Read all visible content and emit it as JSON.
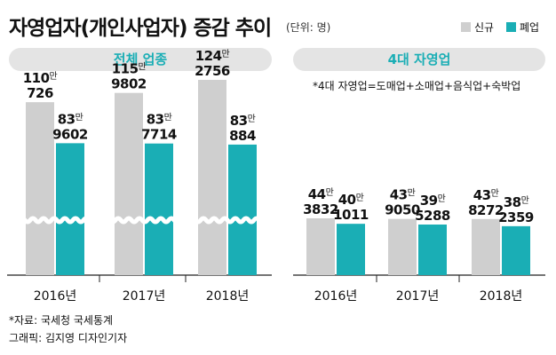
{
  "title": "자영업자(개인사업자) 증감 추이",
  "unit": "(단위: 명)",
  "legend": [
    {
      "name": "신규",
      "color": "#cfcfcf"
    },
    {
      "name": "폐업",
      "color": "#1aaeb5"
    }
  ],
  "panels": [
    {
      "header": "전체 업종"
    },
    {
      "header": "4대 자영업",
      "note": "*4대 자영업=도매업+소매업+음식업+숙박업"
    }
  ],
  "chart_data": [
    {
      "type": "bar",
      "title": "전체 업종",
      "categories": [
        "2016년",
        "2017년",
        "2018년"
      ],
      "series": [
        {
          "name": "신규",
          "values": [
            1100726,
            1159802,
            1242756
          ],
          "labels_top": [
            "110만",
            "115만",
            "124만"
          ],
          "labels_bottom": [
            "726",
            "9802",
            "2756"
          ]
        },
        {
          "name": "폐업",
          "values": [
            839602,
            837714,
            830884
          ],
          "labels_top": [
            "83만",
            "83만",
            "83만"
          ],
          "labels_bottom": [
            "9602",
            "7714",
            "884"
          ]
        }
      ],
      "axis_break": true
    },
    {
      "type": "bar",
      "title": "4대 자영업",
      "categories": [
        "2016년",
        "2017년",
        "2018년"
      ],
      "series": [
        {
          "name": "신규",
          "values": [
            443832,
            439050,
            438272
          ],
          "labels_top": [
            "44만",
            "43만",
            "43만"
          ],
          "labels_bottom": [
            "3832",
            "9050",
            "8272"
          ]
        },
        {
          "name": "폐업",
          "values": [
            401011,
            395288,
            382359
          ],
          "labels_top": [
            "40만",
            "39만",
            "38만"
          ],
          "labels_bottom": [
            "1011",
            "5288",
            "2359"
          ]
        }
      ],
      "axis_break": false
    }
  ],
  "footer": {
    "source": "*자료: 국세청 국세통계",
    "credit": "그래픽: 김지영 디자인기자"
  }
}
